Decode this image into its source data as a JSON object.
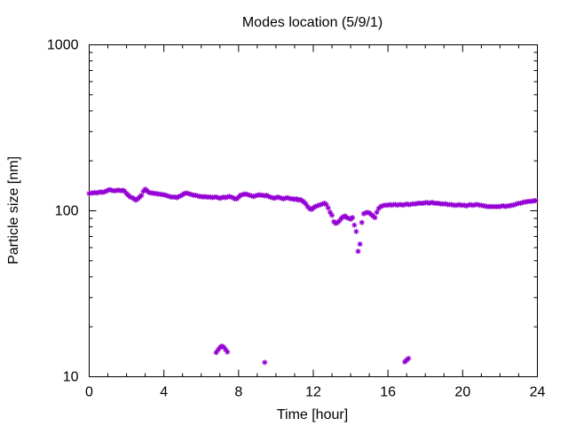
{
  "chart_data": {
    "type": "scatter",
    "title": "Modes location (5/9/1)",
    "xlabel": "Time [hour]",
    "ylabel": "Particle size [nm]",
    "xlim": [
      0,
      24
    ],
    "ylim": [
      10,
      1000
    ],
    "yscale": "log",
    "grid": false,
    "xticks": [
      0,
      4,
      8,
      12,
      16,
      20,
      24
    ],
    "xtick_labels": [
      "0",
      "4",
      "8",
      "12",
      "16",
      "20",
      "24"
    ],
    "yticks": [
      10,
      100,
      1000
    ],
    "ytick_labels": [
      "10",
      "100",
      "1000"
    ],
    "marker": "asterisk",
    "color": "#9400d3",
    "series": [
      {
        "points": [
          [
            0.0,
            127
          ],
          [
            0.1,
            128
          ],
          [
            0.2,
            128
          ],
          [
            0.3,
            129
          ],
          [
            0.4,
            128
          ],
          [
            0.5,
            129
          ],
          [
            0.6,
            130
          ],
          [
            0.7,
            129
          ],
          [
            0.8,
            130
          ],
          [
            0.9,
            131
          ],
          [
            1.0,
            133
          ],
          [
            1.1,
            134
          ],
          [
            1.2,
            133
          ],
          [
            1.3,
            132
          ],
          [
            1.4,
            132
          ],
          [
            1.5,
            133
          ],
          [
            1.6,
            133
          ],
          [
            1.7,
            132
          ],
          [
            1.8,
            133
          ],
          [
            1.9,
            131
          ],
          [
            2.0,
            127
          ],
          [
            2.1,
            124
          ],
          [
            2.2,
            121
          ],
          [
            2.3,
            120
          ],
          [
            2.4,
            118
          ],
          [
            2.5,
            116
          ],
          [
            2.6,
            118
          ],
          [
            2.7,
            121
          ],
          [
            2.8,
            124
          ],
          [
            2.9,
            131
          ],
          [
            3.0,
            135
          ],
          [
            3.1,
            132
          ],
          [
            3.2,
            129
          ],
          [
            3.3,
            128
          ],
          [
            3.4,
            128
          ],
          [
            3.5,
            127
          ],
          [
            3.6,
            127
          ],
          [
            3.7,
            126
          ],
          [
            3.8,
            126
          ],
          [
            3.9,
            125
          ],
          [
            4.0,
            125
          ],
          [
            4.1,
            124
          ],
          [
            4.2,
            123
          ],
          [
            4.3,
            122
          ],
          [
            4.4,
            121
          ],
          [
            4.5,
            121
          ],
          [
            4.6,
            121
          ],
          [
            4.7,
            120
          ],
          [
            4.8,
            122
          ],
          [
            4.9,
            123
          ],
          [
            5.0,
            125
          ],
          [
            5.1,
            127
          ],
          [
            5.2,
            128
          ],
          [
            5.3,
            127
          ],
          [
            5.4,
            126
          ],
          [
            5.5,
            125
          ],
          [
            5.6,
            124
          ],
          [
            5.7,
            124
          ],
          [
            5.8,
            123
          ],
          [
            5.9,
            122
          ],
          [
            6.0,
            122
          ],
          [
            6.1,
            121
          ],
          [
            6.2,
            122
          ],
          [
            6.3,
            121
          ],
          [
            6.4,
            121
          ],
          [
            6.5,
            121
          ],
          [
            6.6,
            120
          ],
          [
            6.7,
            121
          ],
          [
            6.8,
            121
          ],
          [
            6.9,
            120
          ],
          [
            7.0,
            119
          ],
          [
            7.1,
            120
          ],
          [
            7.2,
            121
          ],
          [
            7.3,
            120
          ],
          [
            7.4,
            121
          ],
          [
            7.5,
            122
          ],
          [
            7.6,
            121
          ],
          [
            7.7,
            120
          ],
          [
            7.8,
            118
          ],
          [
            7.9,
            118
          ],
          [
            8.0,
            121
          ],
          [
            8.1,
            124
          ],
          [
            8.2,
            125
          ],
          [
            8.3,
            126
          ],
          [
            8.4,
            126
          ],
          [
            8.5,
            125
          ],
          [
            8.6,
            124
          ],
          [
            8.7,
            123
          ],
          [
            8.8,
            122
          ],
          [
            8.9,
            123
          ],
          [
            9.0,
            124
          ],
          [
            9.1,
            125
          ],
          [
            9.2,
            124
          ],
          [
            9.3,
            124
          ],
          [
            9.4,
            123
          ],
          [
            9.5,
            124
          ],
          [
            9.6,
            122
          ],
          [
            9.7,
            121
          ],
          [
            9.8,
            120
          ],
          [
            9.9,
            119
          ],
          [
            10.0,
            120
          ],
          [
            10.1,
            121
          ],
          [
            10.2,
            120
          ],
          [
            10.3,
            119
          ],
          [
            10.4,
            118
          ],
          [
            10.5,
            119
          ],
          [
            10.6,
            120
          ],
          [
            10.7,
            119
          ],
          [
            10.8,
            118
          ],
          [
            10.9,
            118
          ],
          [
            11.0,
            117
          ],
          [
            11.1,
            118
          ],
          [
            11.2,
            116
          ],
          [
            11.3,
            117
          ],
          [
            11.4,
            115
          ],
          [
            11.5,
            113
          ],
          [
            11.6,
            110
          ],
          [
            11.7,
            106
          ],
          [
            11.8,
            103
          ],
          [
            11.9,
            102
          ],
          [
            12.0,
            104
          ],
          [
            12.1,
            106
          ],
          [
            12.2,
            107
          ],
          [
            12.3,
            108
          ],
          [
            12.4,
            109
          ],
          [
            12.5,
            110
          ],
          [
            12.6,
            111
          ],
          [
            12.7,
            109
          ],
          [
            12.8,
            104
          ],
          [
            12.9,
            98
          ],
          [
            13.0,
            94
          ],
          [
            13.1,
            86
          ],
          [
            13.2,
            84
          ],
          [
            13.3,
            85
          ],
          [
            13.4,
            87
          ],
          [
            13.5,
            90
          ],
          [
            13.6,
            92
          ],
          [
            13.7,
            93
          ],
          [
            13.8,
            91
          ],
          [
            13.9,
            90
          ],
          [
            14.0,
            89
          ],
          [
            14.1,
            91
          ],
          [
            14.2,
            82
          ],
          [
            14.3,
            75
          ],
          [
            14.4,
            57
          ],
          [
            14.5,
            63
          ],
          [
            14.6,
            85
          ],
          [
            14.7,
            96
          ],
          [
            14.8,
            97
          ],
          [
            14.9,
            98
          ],
          [
            15.0,
            97
          ],
          [
            15.1,
            95
          ],
          [
            15.2,
            93
          ],
          [
            15.3,
            91
          ],
          [
            15.4,
            98
          ],
          [
            15.5,
            103
          ],
          [
            15.6,
            106
          ],
          [
            15.7,
            107
          ],
          [
            15.8,
            108
          ],
          [
            15.9,
            108
          ],
          [
            16.0,
            108
          ],
          [
            16.1,
            109
          ],
          [
            16.2,
            108
          ],
          [
            16.3,
            109
          ],
          [
            16.4,
            109
          ],
          [
            16.5,
            108
          ],
          [
            16.6,
            109
          ],
          [
            16.7,
            109
          ],
          [
            16.8,
            108
          ],
          [
            16.9,
            109
          ],
          [
            17.0,
            110
          ],
          [
            17.1,
            109
          ],
          [
            17.2,
            109
          ],
          [
            17.3,
            110
          ],
          [
            17.4,
            110
          ],
          [
            17.5,
            110
          ],
          [
            17.6,
            111
          ],
          [
            17.7,
            111
          ],
          [
            17.8,
            111
          ],
          [
            17.9,
            111
          ],
          [
            18.0,
            112
          ],
          [
            18.1,
            112
          ],
          [
            18.2,
            111
          ],
          [
            18.3,
            112
          ],
          [
            18.4,
            112
          ],
          [
            18.5,
            111
          ],
          [
            18.6,
            111
          ],
          [
            18.7,
            111
          ],
          [
            18.8,
            110
          ],
          [
            18.9,
            110
          ],
          [
            19.0,
            110
          ],
          [
            19.1,
            110
          ],
          [
            19.2,
            109
          ],
          [
            19.3,
            109
          ],
          [
            19.4,
            109
          ],
          [
            19.5,
            108
          ],
          [
            19.6,
            108
          ],
          [
            19.7,
            108
          ],
          [
            19.8,
            109
          ],
          [
            19.9,
            108
          ],
          [
            20.0,
            108
          ],
          [
            20.1,
            108
          ],
          [
            20.2,
            107
          ],
          [
            20.3,
            108
          ],
          [
            20.4,
            109
          ],
          [
            20.5,
            108
          ],
          [
            20.6,
            108
          ],
          [
            20.7,
            109
          ],
          [
            20.8,
            109
          ],
          [
            20.9,
            108
          ],
          [
            21.0,
            108
          ],
          [
            21.1,
            107
          ],
          [
            21.2,
            107
          ],
          [
            21.3,
            106
          ],
          [
            21.4,
            106
          ],
          [
            21.5,
            106
          ],
          [
            21.6,
            106
          ],
          [
            21.7,
            106
          ],
          [
            21.8,
            106
          ],
          [
            21.9,
            106
          ],
          [
            22.0,
            106
          ],
          [
            22.1,
            107
          ],
          [
            22.2,
            107
          ],
          [
            22.3,
            106
          ],
          [
            22.4,
            107
          ],
          [
            22.5,
            107
          ],
          [
            22.6,
            108
          ],
          [
            22.7,
            108
          ],
          [
            22.8,
            109
          ],
          [
            22.9,
            110
          ],
          [
            23.0,
            111
          ],
          [
            23.1,
            111
          ],
          [
            23.2,
            112
          ],
          [
            23.3,
            113
          ],
          [
            23.4,
            113
          ],
          [
            23.5,
            114
          ],
          [
            23.6,
            114
          ],
          [
            23.7,
            114
          ],
          [
            23.8,
            115
          ],
          [
            23.9,
            115
          ],
          [
            6.8,
            14.0
          ],
          [
            6.9,
            14.5
          ],
          [
            7.0,
            15.0
          ],
          [
            7.1,
            15.3
          ],
          [
            7.2,
            15.1
          ],
          [
            7.3,
            14.6
          ],
          [
            7.4,
            14.1
          ],
          [
            9.4,
            12.2
          ],
          [
            16.9,
            12.3
          ],
          [
            17.0,
            12.6
          ],
          [
            17.1,
            12.9
          ]
        ]
      }
    ]
  }
}
